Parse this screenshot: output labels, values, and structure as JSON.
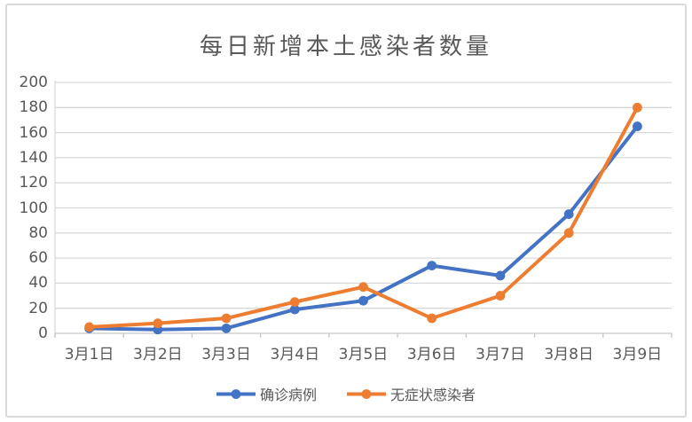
{
  "chart_data": {
    "type": "line",
    "title": "每日新增本土感染者数量",
    "categories": [
      "3月1日",
      "3月2日",
      "3月3日",
      "3月4日",
      "3月5日",
      "3月6日",
      "3月7日",
      "3月8日",
      "3月9日"
    ],
    "series": [
      {
        "id": "confirmed-cases",
        "name": "确诊病例",
        "color": "#4472C4",
        "values": [
          4,
          3,
          4,
          19,
          26,
          54,
          46,
          95,
          165
        ]
      },
      {
        "id": "asymptomatic-infections",
        "name": "无症状感染者",
        "color": "#ED7D31",
        "values": [
          5,
          8,
          12,
          25,
          37,
          12,
          30,
          80,
          180
        ]
      }
    ],
    "xlabel": "",
    "ylabel": "",
    "ylim": [
      0,
      200
    ],
    "yticks": [
      0,
      20,
      40,
      60,
      80,
      100,
      120,
      140,
      160,
      180,
      200
    ],
    "grid": true,
    "legend_position": "bottom",
    "marker": "circle",
    "line_width": 4
  },
  "colors": {
    "background": "#FFFFFF",
    "border": "#D9D9D9",
    "gridline": "#D9D9D9",
    "axis_line": "#C6C6C6",
    "title_text": "#595959",
    "axis_text": "#595959"
  }
}
